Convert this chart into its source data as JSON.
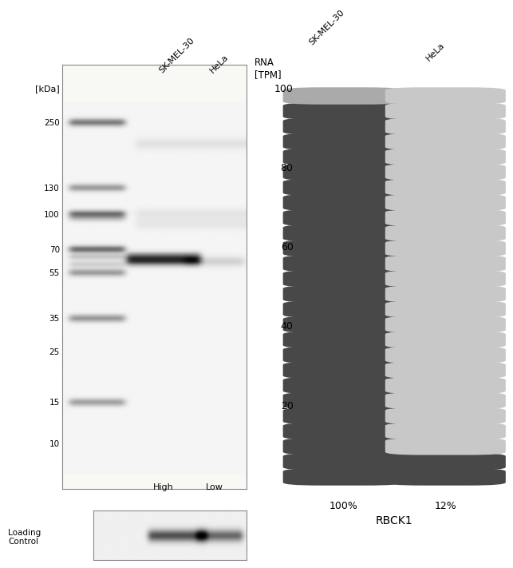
{
  "bg_color": "#ffffff",
  "wb_kdas": [
    250,
    130,
    100,
    70,
    55,
    35,
    25,
    15,
    10
  ],
  "wb_label_x": "[kDa]",
  "wb_col1_label": "SK-MEL-30",
  "wb_col2_label": "HeLa",
  "wb_bottom_label1": "High",
  "wb_bottom_label2": "Low",
  "loading_control_label": "Loading\nControl",
  "rna_n_bars": 26,
  "rna_col1_label": "SK-MEL-30",
  "rna_col2_label": "HeLa",
  "rna_col1_dark": "#484848",
  "rna_col1_top": "#aaaaaa",
  "rna_col2_light": "#c8c8c8",
  "rna_col2_dark": "#484848",
  "rna_col2_dark_count": 2,
  "rna_y_ticks": [
    20,
    40,
    60,
    80,
    100
  ],
  "rna_xlabel_col1": "100%",
  "rna_xlabel_col2": "12%",
  "rna_gene": "RBCK1"
}
